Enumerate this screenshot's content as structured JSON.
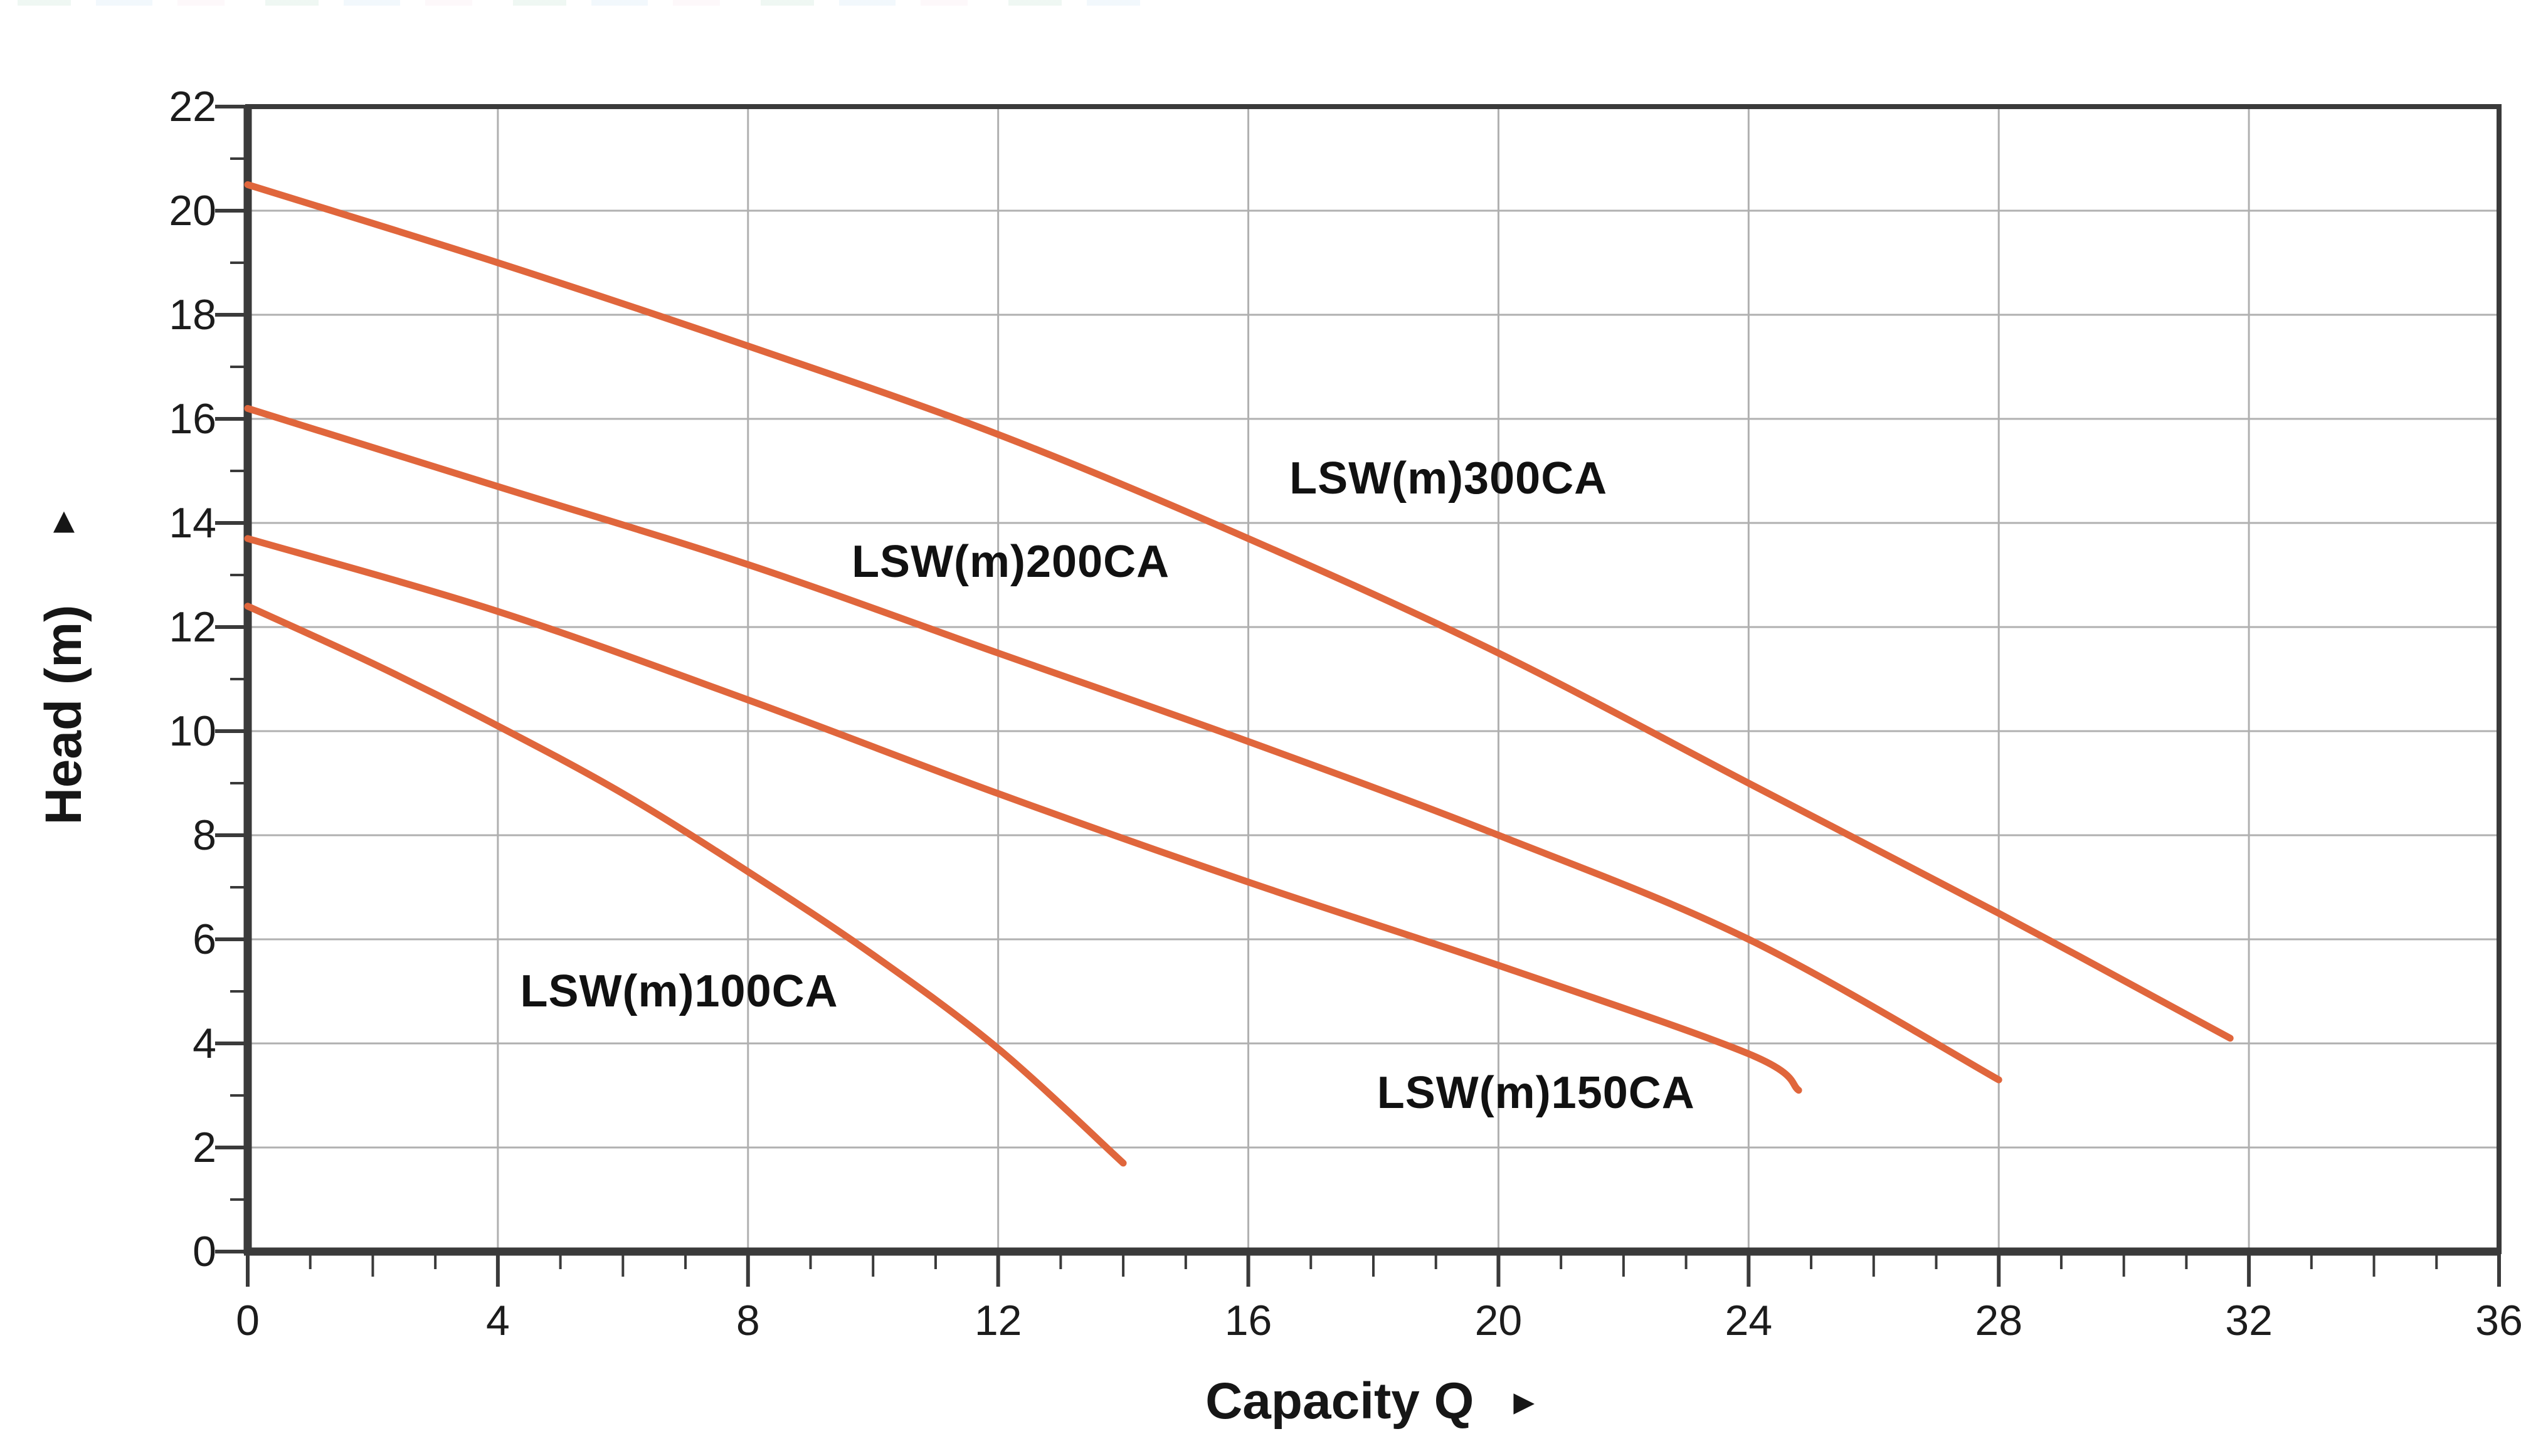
{
  "top_edge_artifact": {
    "visible": true
  },
  "chart_data": {
    "type": "line",
    "title": "",
    "xlabel": "Capacity Q",
    "x_arrow": "►",
    "ylabel": "Head (m)",
    "y_arrow": "▲",
    "xlim": [
      0,
      36
    ],
    "ylim": [
      0,
      22
    ],
    "x_tick_labels": [
      "0",
      "4",
      "8",
      "12",
      "16",
      "20",
      "24",
      "28",
      "32",
      "36"
    ],
    "y_tick_labels": [
      "0",
      "2",
      "4",
      "6",
      "8",
      "10",
      "12",
      "14",
      "16",
      "18",
      "20",
      "22"
    ],
    "x_major_tick_step": 4,
    "x_minor_tick_step": 1,
    "y_major_tick_step": 2,
    "y_minor_tick_step": 1,
    "grid": {
      "vertical_every": 4,
      "horizontal_every": 2,
      "on": true
    },
    "legend": null,
    "colors": {
      "curve": "#E0663C",
      "axis_frame": "#3A3A3A",
      "gridline": "#B0B0B0",
      "tick_label": "#1C1C1C",
      "curve_label": "#111111"
    },
    "series": [
      {
        "name": "LSW(m)100CA",
        "points": [
          [
            0,
            12.4
          ],
          [
            2,
            11.3
          ],
          [
            4,
            10.1
          ],
          [
            6,
            8.8
          ],
          [
            8,
            7.3
          ],
          [
            10,
            5.7
          ],
          [
            12,
            3.9
          ],
          [
            14,
            1.7
          ]
        ],
        "label_at": [
          6.9,
          5.0
        ]
      },
      {
        "name": "LSW(m)150CA",
        "points": [
          [
            0,
            13.7
          ],
          [
            4,
            12.3
          ],
          [
            8,
            10.6
          ],
          [
            12,
            8.8
          ],
          [
            16,
            7.1
          ],
          [
            20,
            5.5
          ],
          [
            24,
            3.8
          ],
          [
            24.8,
            3.1
          ]
        ],
        "label_at": [
          20.6,
          3.05
        ]
      },
      {
        "name": "LSW(m)200CA",
        "points": [
          [
            0,
            16.2
          ],
          [
            4,
            14.7
          ],
          [
            8,
            13.2
          ],
          [
            12,
            11.5
          ],
          [
            16,
            9.8
          ],
          [
            20,
            8.0
          ],
          [
            24,
            6.0
          ],
          [
            28,
            3.3
          ]
        ],
        "label_at": [
          12.2,
          13.25
        ]
      },
      {
        "name": "LSW(m)300CA",
        "points": [
          [
            0,
            20.5
          ],
          [
            4,
            19.0
          ],
          [
            8,
            17.4
          ],
          [
            12,
            15.7
          ],
          [
            16,
            13.7
          ],
          [
            20,
            11.5
          ],
          [
            24,
            9.0
          ],
          [
            28,
            6.5
          ],
          [
            31.7,
            4.1
          ]
        ],
        "label_at": [
          19.2,
          14.85
        ]
      }
    ]
  }
}
